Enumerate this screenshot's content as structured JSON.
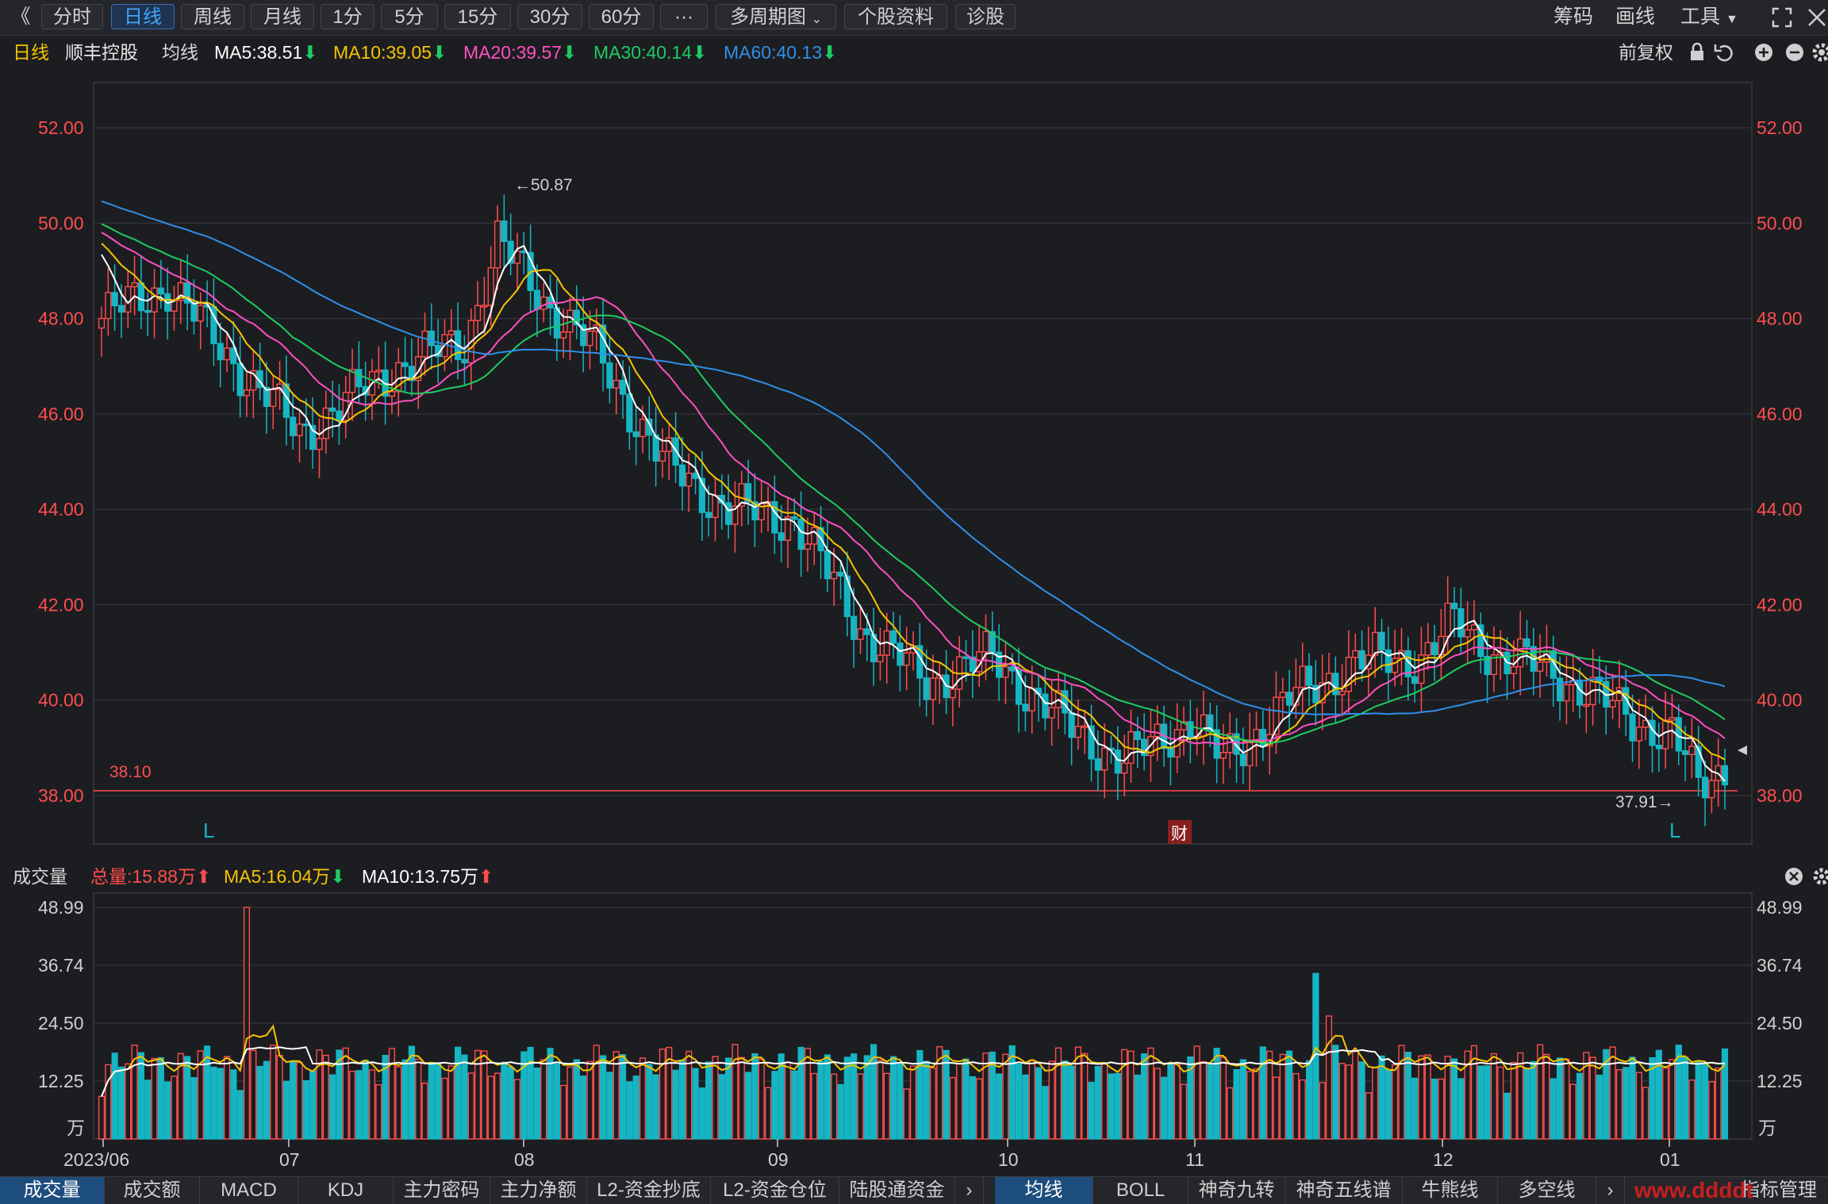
{
  "toolbar": {
    "collapse": "《",
    "periods": [
      "分时",
      "日线",
      "周线",
      "月线",
      "1分",
      "5分",
      "15分",
      "30分",
      "60分"
    ],
    "active": "日线",
    "more": "···",
    "multi_period": "多周期图",
    "profile": "个股资料",
    "diagnose": "诊股",
    "right": [
      "筹码",
      "画线",
      "工具"
    ]
  },
  "info": {
    "period": "日线",
    "stock": "顺丰控股",
    "ma_label": "均线",
    "ma5": "MA5:38.51",
    "ma10": "MA10:39.05",
    "ma20": "MA20:39.57",
    "ma30": "MA30:40.14",
    "ma60": "MA60:40.13",
    "adjust": "前复权"
  },
  "price_axis": {
    "ticks": [
      "52.00",
      "50.00",
      "48.00",
      "46.00",
      "44.00",
      "42.00",
      "40.00",
      "38.00"
    ],
    "high_label": "←50.87",
    "low_label": "37.91→",
    "support_label": "38.10",
    "marker_l": "L",
    "marker_cai": "财"
  },
  "volume": {
    "title": "成交量",
    "total": "总量:15.88万",
    "ma5": "MA5:16.04万",
    "ma10": "MA10:13.75万",
    "ticks": [
      "48.99",
      "36.74",
      "24.50",
      "12.25"
    ],
    "unit": "万"
  },
  "x_axis": [
    "2023/06",
    "07",
    "08",
    "09",
    "10",
    "11",
    "12",
    "01"
  ],
  "bottom_left_tabs": [
    "成交量",
    "成交额",
    "MACD",
    "KDJ",
    "主力密码",
    "主力净额",
    "L2-资金抄底",
    "L2-资金仓位",
    "陆股通资金"
  ],
  "bottom_right_tabs": [
    "均线",
    "BOLL",
    "神奇九转",
    "神奇五线谱",
    "牛熊线",
    "多空线"
  ],
  "indicator_mgmt": "指标管理",
  "watermark": "www.ddddt",
  "colors": {
    "up": "#ff4d4d",
    "down": "#16b5c3",
    "ma5": "#ffffff",
    "ma10": "#f5c400",
    "ma20": "#ff4fc0",
    "ma30": "#1ecb62",
    "ma60": "#2f8fe8"
  }
}
